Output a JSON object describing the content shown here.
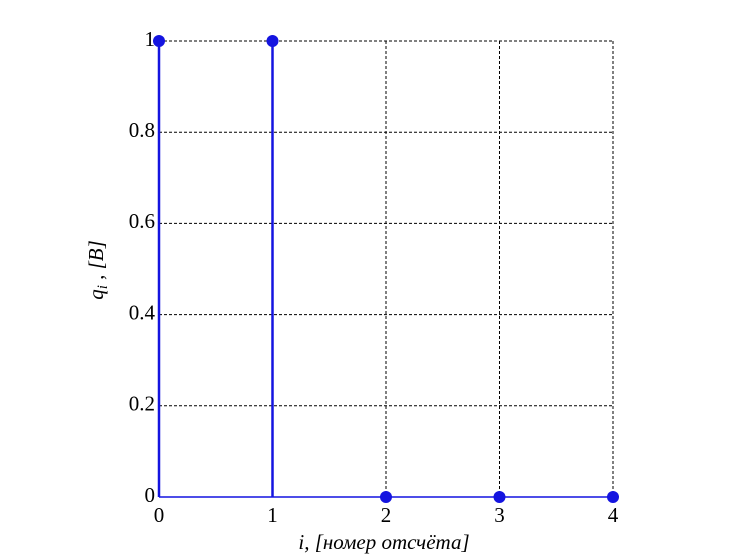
{
  "chart_data": {
    "type": "stem",
    "x": [
      0,
      1,
      2,
      3,
      4
    ],
    "values": [
      1,
      1,
      0,
      0,
      0
    ],
    "color": "#1414e0",
    "xlabel": "i, [номер отсчёта]",
    "ylabel": "q",
    "ylabel_sub": "i",
    "ylabel_rest": " , [В]",
    "xlim": [
      0,
      4
    ],
    "xticks": [
      0,
      1,
      2,
      3,
      4
    ],
    "ylim": [
      0,
      1
    ],
    "yticks": [
      0,
      0.2,
      0.4,
      0.6,
      0.8,
      1
    ],
    "grid": true
  }
}
